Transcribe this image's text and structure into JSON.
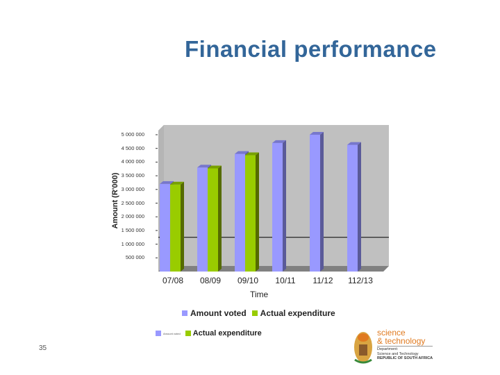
{
  "slide": {
    "title": "Financial performance",
    "page_number": "35"
  },
  "chart_data": {
    "type": "bar",
    "title": "",
    "xlabel": "Time",
    "ylabel": "Amount (R'000)",
    "ylim": [
      0,
      5000000
    ],
    "y_ticks": [
      "500 000",
      "1 000 000",
      "1 500 000",
      "2 000 000",
      "2 500 000",
      "3 000 000",
      "3 500 000",
      "4 000 000",
      "4 500 000",
      "5 000 000"
    ],
    "categories": [
      "07/08",
      "08/09",
      "09/10",
      "10/11",
      "11/12",
      "112/13"
    ],
    "series": [
      {
        "name": "Amount voted",
        "color": "#9999ff",
        "values": [
          3200000,
          3800000,
          4300000,
          4700000,
          5000000,
          4630000
        ]
      },
      {
        "name": "Actual expenditure",
        "color": "#99cc00",
        "values": [
          3180000,
          3770000,
          4250000,
          null,
          null,
          null
        ]
      }
    ],
    "reference_line": 1250000,
    "grid": false,
    "legend_position": "bottom",
    "legend_secondary": {
      "label_small": "Amount voted",
      "label": "Actual expenditure"
    }
  },
  "logo": {
    "line1": "science",
    "line2": "& technology",
    "line3": "Department:",
    "line4": "Science and Technology",
    "line5": "REPUBLIC OF SOUTH AFRICA"
  }
}
